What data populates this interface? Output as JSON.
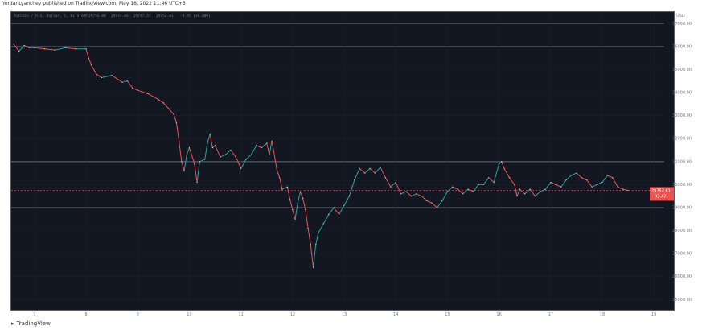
{
  "header": {
    "publisher_text": "YordanLyanchev published on TradingView.com, May 18, 2022 11:46 UTC+3"
  },
  "legend": {
    "symbol": "Bitcoin / U.S. Dollar, 5, BITSTAMP",
    "o": "29755.88",
    "h": "29774.83",
    "l": "29747.57",
    "c": "29752.61",
    "chg": "-0.95 (+0.00%)"
  },
  "footer": {
    "logo_text": "TradingView"
  },
  "price_tag": {
    "price": "29752.61",
    "countdown": "03:47"
  },
  "axis_currency": "USD",
  "colors": {
    "up": "#26a69a",
    "down": "#ef5350",
    "background": "#131722",
    "level": "#b2b5be"
  },
  "chart_data": {
    "type": "line",
    "x_ticks": [
      "7",
      "8",
      "9",
      "10",
      "11",
      "12",
      "13",
      "14",
      "15",
      "16",
      "17",
      "18",
      "19"
    ],
    "y_ticks": [
      25000,
      26000,
      27000,
      28000,
      29000,
      30000,
      31000,
      32000,
      33000,
      34000,
      35000,
      36000,
      37000
    ],
    "y_tick_labels": [
      "25000.00",
      "26000.00",
      "27000.00",
      "28000.00",
      "29000.00",
      "30000.00",
      "31000.00",
      "32000.00",
      "33000.00",
      "34000.00",
      "35000.00",
      "36000.00",
      "37000.00"
    ],
    "ylim": [
      24800,
      37500
    ],
    "horizontal_levels": [
      37000,
      36000,
      31000,
      29000
    ],
    "current_price": 29752.61,
    "series": [
      {
        "values": [
          [
            6.6,
            36100
          ],
          [
            6.7,
            35800
          ],
          [
            6.8,
            36050
          ],
          [
            6.9,
            35950
          ],
          [
            7.0,
            35950
          ],
          [
            7.2,
            35900
          ],
          [
            7.4,
            35850
          ],
          [
            7.6,
            35950
          ],
          [
            7.8,
            35900
          ],
          [
            8.0,
            35900
          ],
          [
            8.05,
            35500
          ],
          [
            8.1,
            35200
          ],
          [
            8.2,
            34800
          ],
          [
            8.3,
            34650
          ],
          [
            8.5,
            34750
          ],
          [
            8.7,
            34450
          ],
          [
            8.8,
            34500
          ],
          [
            8.9,
            34200
          ],
          [
            9.0,
            34100
          ],
          [
            9.2,
            33950
          ],
          [
            9.4,
            33700
          ],
          [
            9.5,
            33550
          ],
          [
            9.6,
            33300
          ],
          [
            9.7,
            33050
          ],
          [
            9.75,
            32700
          ],
          [
            9.8,
            31900
          ],
          [
            9.85,
            31000
          ],
          [
            9.9,
            30600
          ],
          [
            9.95,
            31300
          ],
          [
            10.0,
            31600
          ],
          [
            10.1,
            30900
          ],
          [
            10.15,
            30100
          ],
          [
            10.2,
            31000
          ],
          [
            10.3,
            31100
          ],
          [
            10.35,
            31800
          ],
          [
            10.4,
            32200
          ],
          [
            10.45,
            31600
          ],
          [
            10.5,
            31700
          ],
          [
            10.6,
            31200
          ],
          [
            10.7,
            31300
          ],
          [
            10.8,
            31500
          ],
          [
            10.9,
            31200
          ],
          [
            11.0,
            30700
          ],
          [
            11.1,
            31100
          ],
          [
            11.2,
            31300
          ],
          [
            11.3,
            31700
          ],
          [
            11.4,
            31600
          ],
          [
            11.5,
            31800
          ],
          [
            11.55,
            31300
          ],
          [
            11.6,
            31900
          ],
          [
            11.7,
            30600
          ],
          [
            11.75,
            30300
          ],
          [
            11.8,
            29800
          ],
          [
            11.9,
            29900
          ],
          [
            11.95,
            29350
          ],
          [
            12.0,
            28900
          ],
          [
            12.05,
            28500
          ],
          [
            12.1,
            29200
          ],
          [
            12.15,
            29700
          ],
          [
            12.2,
            29400
          ],
          [
            12.25,
            28900
          ],
          [
            12.3,
            28100
          ],
          [
            12.35,
            27400
          ],
          [
            12.4,
            26400
          ],
          [
            12.45,
            27400
          ],
          [
            12.5,
            27900
          ],
          [
            12.6,
            28300
          ],
          [
            12.7,
            28700
          ],
          [
            12.8,
            29000
          ],
          [
            12.9,
            28700
          ],
          [
            13.0,
            29100
          ],
          [
            13.1,
            29500
          ],
          [
            13.2,
            30200
          ],
          [
            13.3,
            30700
          ],
          [
            13.4,
            30500
          ],
          [
            13.5,
            30700
          ],
          [
            13.6,
            30500
          ],
          [
            13.7,
            30750
          ],
          [
            13.8,
            30300
          ],
          [
            13.9,
            29900
          ],
          [
            14.0,
            30100
          ],
          [
            14.1,
            29600
          ],
          [
            14.2,
            29700
          ],
          [
            14.3,
            29500
          ],
          [
            14.4,
            29600
          ],
          [
            14.5,
            29500
          ],
          [
            14.6,
            29300
          ],
          [
            14.7,
            29200
          ],
          [
            14.8,
            29000
          ],
          [
            14.9,
            29300
          ],
          [
            15.0,
            29700
          ],
          [
            15.1,
            29900
          ],
          [
            15.2,
            29800
          ],
          [
            15.3,
            29600
          ],
          [
            15.4,
            29800
          ],
          [
            15.5,
            29700
          ],
          [
            15.6,
            30000
          ],
          [
            15.7,
            30000
          ],
          [
            15.8,
            30300
          ],
          [
            15.9,
            30100
          ],
          [
            16.0,
            30900
          ],
          [
            16.05,
            31000
          ],
          [
            16.1,
            30700
          ],
          [
            16.2,
            30300
          ],
          [
            16.3,
            30000
          ],
          [
            16.35,
            29500
          ],
          [
            16.4,
            29800
          ],
          [
            16.5,
            29600
          ],
          [
            16.6,
            29800
          ],
          [
            16.7,
            29500
          ],
          [
            16.8,
            29700
          ],
          [
            16.9,
            29800
          ],
          [
            17.0,
            30100
          ],
          [
            17.1,
            30000
          ],
          [
            17.2,
            29900
          ],
          [
            17.3,
            30200
          ],
          [
            17.4,
            30400
          ],
          [
            17.5,
            30500
          ],
          [
            17.6,
            30300
          ],
          [
            17.7,
            30200
          ],
          [
            17.8,
            29900
          ],
          [
            17.9,
            30000
          ],
          [
            18.0,
            30100
          ],
          [
            18.1,
            30400
          ],
          [
            18.2,
            30300
          ],
          [
            18.3,
            29900
          ],
          [
            18.4,
            29800
          ],
          [
            18.5,
            29750
          ]
        ]
      }
    ]
  }
}
